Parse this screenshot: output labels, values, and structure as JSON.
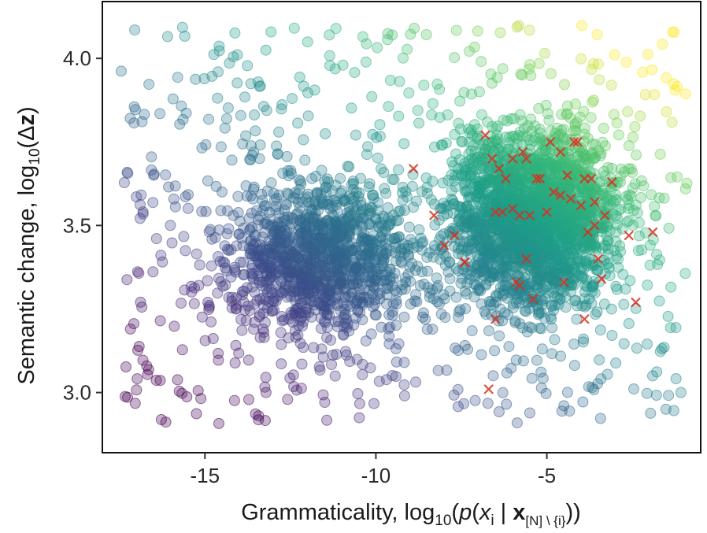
{
  "chart_data": {
    "type": "scatter",
    "title": "",
    "xlabel": "Grammaticality, log₁₀(p(xᵢ | x[N] \\ {i}))",
    "ylabel": "Semantic change, log₁₀(Δz)",
    "xlim": [
      -18.0,
      -0.5
    ],
    "ylim": [
      2.82,
      4.17
    ],
    "x_ticks": [
      -15,
      -10,
      -5
    ],
    "x_tick_labels": [
      "-15",
      "-10",
      "-5"
    ],
    "y_ticks": [
      3.0,
      3.5,
      4.0
    ],
    "y_tick_labels": [
      "3.0",
      "3.5",
      "4.0"
    ],
    "grid": false,
    "legend": "none",
    "colormap": "viridis",
    "colors": {
      "dark": "#440154",
      "mid": "#21918c",
      "light": "#fde725",
      "marker": "#d7301f"
    },
    "background_points": {
      "description_count": 4000,
      "marker": "circle",
      "opacity": 0.3
    },
    "highlighted_series": {
      "marker": "x",
      "color": "#d7301f",
      "points": [
        [
          -8.9,
          3.67
        ],
        [
          -8.3,
          3.53
        ],
        [
          -8.0,
          3.44
        ],
        [
          -7.7,
          3.47
        ],
        [
          -7.4,
          3.39
        ],
        [
          -6.8,
          3.77
        ],
        [
          -6.6,
          3.7
        ],
        [
          -6.5,
          3.22
        ],
        [
          -6.5,
          3.54
        ],
        [
          -6.4,
          3.67
        ],
        [
          -6.3,
          3.54
        ],
        [
          -6.2,
          3.64
        ],
        [
          -6.0,
          3.7
        ],
        [
          -6.0,
          3.55
        ],
        [
          -5.9,
          3.33
        ],
        [
          -5.8,
          3.32
        ],
        [
          -5.8,
          3.53
        ],
        [
          -5.7,
          3.72
        ],
        [
          -5.6,
          3.7
        ],
        [
          -5.6,
          3.4
        ],
        [
          -5.5,
          3.53
        ],
        [
          -5.4,
          3.28
        ],
        [
          -5.2,
          3.64
        ],
        [
          -5.0,
          3.54
        ],
        [
          -4.9,
          3.75
        ],
        [
          -4.8,
          3.6
        ],
        [
          -4.6,
          3.72
        ],
        [
          -4.6,
          3.59
        ],
        [
          -4.5,
          3.33
        ],
        [
          -4.4,
          3.65
        ],
        [
          -4.3,
          3.58
        ],
        [
          -4.1,
          3.75
        ],
        [
          -4.0,
          3.56
        ],
        [
          -3.9,
          3.64
        ],
        [
          -3.9,
          3.22
        ],
        [
          -3.8,
          3.48
        ],
        [
          -3.7,
          3.64
        ],
        [
          -3.6,
          3.57
        ],
        [
          -3.5,
          3.4
        ],
        [
          -3.4,
          3.34
        ],
        [
          -3.3,
          3.53
        ],
        [
          -3.1,
          3.63
        ],
        [
          -2.6,
          3.47
        ],
        [
          -2.4,
          3.27
        ],
        [
          -1.9,
          3.48
        ],
        [
          -6.7,
          3.01
        ],
        [
          -5.3,
          3.64
        ],
        [
          -3.6,
          3.5
        ],
        [
          -4.2,
          3.75
        ],
        [
          -7.4,
          3.39
        ]
      ]
    }
  }
}
